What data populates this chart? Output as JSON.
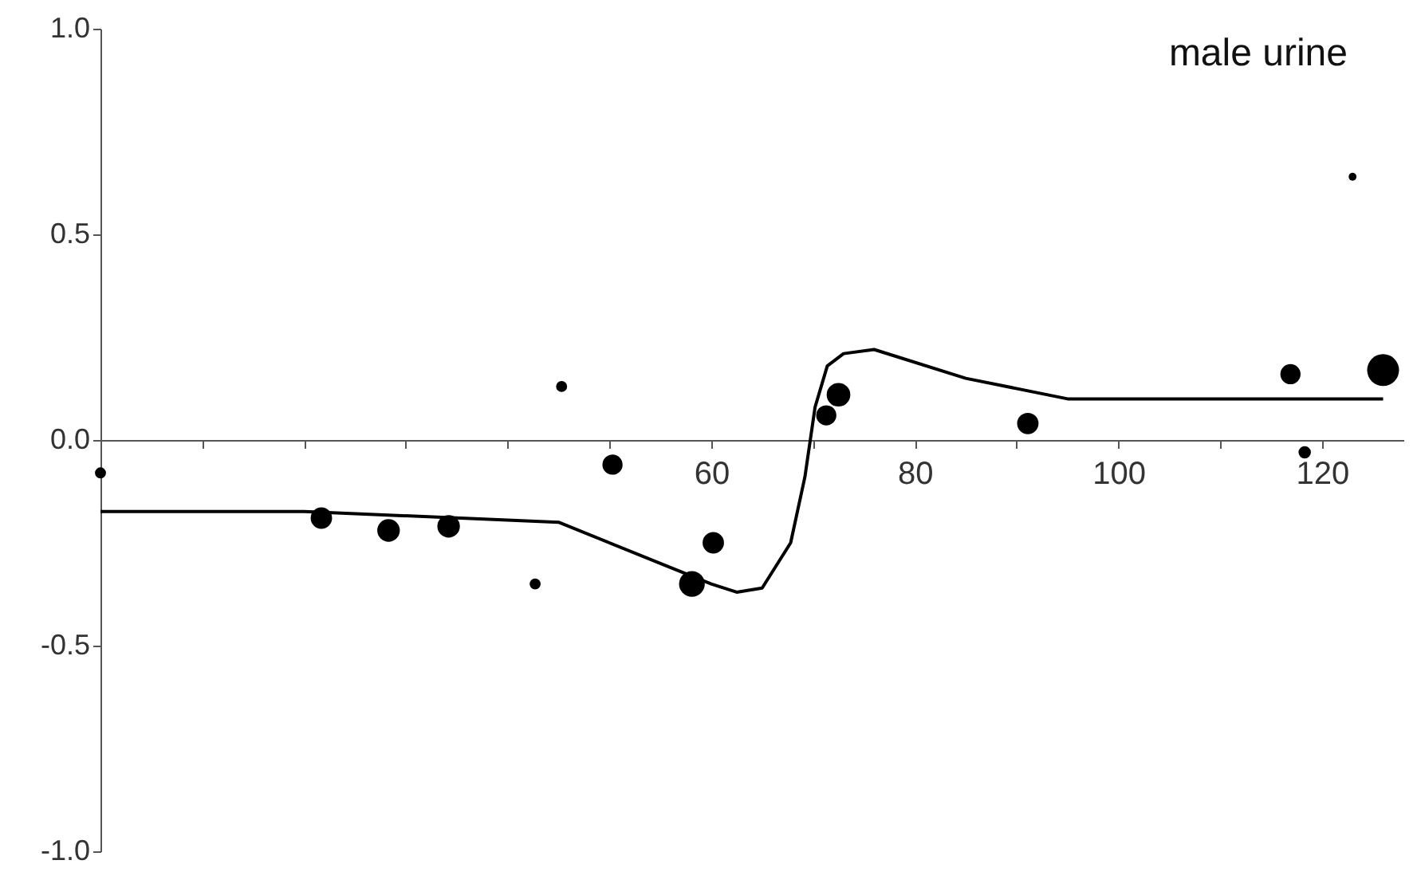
{
  "chart_data": {
    "type": "scatter",
    "annotations": [
      "male urine"
    ],
    "xlim": [
      0,
      128
    ],
    "ylim": [
      -1,
      1
    ],
    "xticks": [
      {
        "value": 10,
        "label": null
      },
      {
        "value": 20,
        "label": null
      },
      {
        "value": 30,
        "label": null
      },
      {
        "value": 40,
        "label": null
      },
      {
        "value": 50,
        "label": null
      },
      60,
      {
        "value": 70,
        "label": null
      },
      80,
      {
        "value": 90,
        "label": null
      },
      100,
      {
        "value": 110,
        "label": null
      },
      120
    ],
    "yticks": [
      {
        "value": -1,
        "label": "-1.0"
      },
      {
        "value": -0.5,
        "label": "-0.5"
      },
      {
        "value": 0,
        "label": "0.0"
      },
      {
        "value": 0.5,
        "label": "0.5"
      },
      {
        "value": 1,
        "label": "1.0"
      }
    ],
    "grid": false,
    "series": [
      {
        "marker": "circle",
        "color": "#000000",
        "x": [
          0,
          21.7,
          28.3,
          34.2,
          42.7,
          45.3,
          50.3,
          58.1,
          60.2,
          71.3,
          72.5,
          91.1,
          116.9,
          118.3,
          123,
          126
        ],
        "values": [
          -0.08,
          -0.19,
          -0.22,
          -0.21,
          -0.35,
          0.13,
          -0.06,
          -0.35,
          -0.25,
          0.06,
          0.11,
          0.04,
          0.16,
          -0.03,
          0.64,
          0.17
        ],
        "sizes": [
          0.12,
          0.45,
          0.5,
          0.5,
          0.12,
          0.12,
          0.4,
          0.65,
          0.45,
          0.4,
          0.55,
          0.45,
          0.4,
          0.15,
          0.06,
          1
        ]
      },
      {
        "type": "line",
        "marker": "none",
        "line_style": "solid",
        "color": "#000000",
        "x": [
          0,
          20,
          45,
          55,
          60,
          62.5,
          65,
          67.8,
          69.2,
          70.2,
          71.4,
          73,
          76,
          85,
          95,
          126
        ],
        "values": [
          -0.174,
          -0.174,
          -0.2,
          -0.3,
          -0.35,
          -0.37,
          -0.36,
          -0.25,
          -0.09,
          0.08,
          0.18,
          0.21,
          0.22,
          0.15,
          0.1,
          0.1
        ]
      }
    ]
  }
}
